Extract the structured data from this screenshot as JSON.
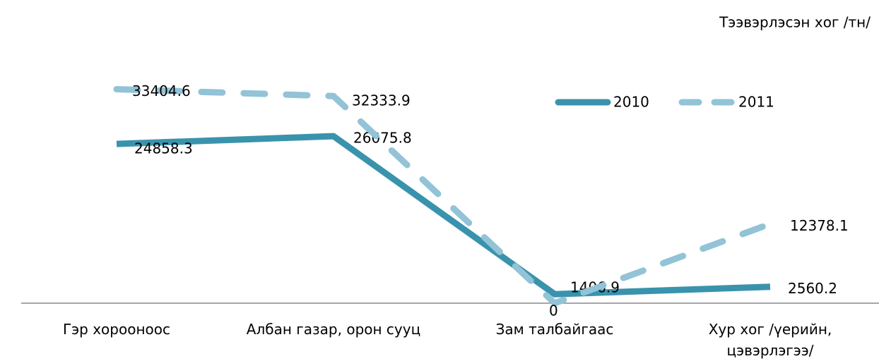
{
  "chart_data": {
    "type": "line",
    "title": "Тээвэрлэсэн хог /тн/",
    "categories": [
      "Гэр хорооноос",
      "Албан газар, орон сууц",
      "Зам талбайгаас",
      "Хур хог /үерийн, цэвэрлэгээ/"
    ],
    "series": [
      {
        "name": "2010",
        "color": "#3a93ac",
        "values": [
          24858.3,
          26075.8,
          1406.9,
          2560.2
        ]
      },
      {
        "name": "2011",
        "color": "#92c3d6",
        "dashed": true,
        "values": [
          33404.6,
          32333.9,
          0,
          12378.1
        ]
      }
    ],
    "ylim": [
      0,
      47000
    ],
    "legend": "top-right"
  }
}
